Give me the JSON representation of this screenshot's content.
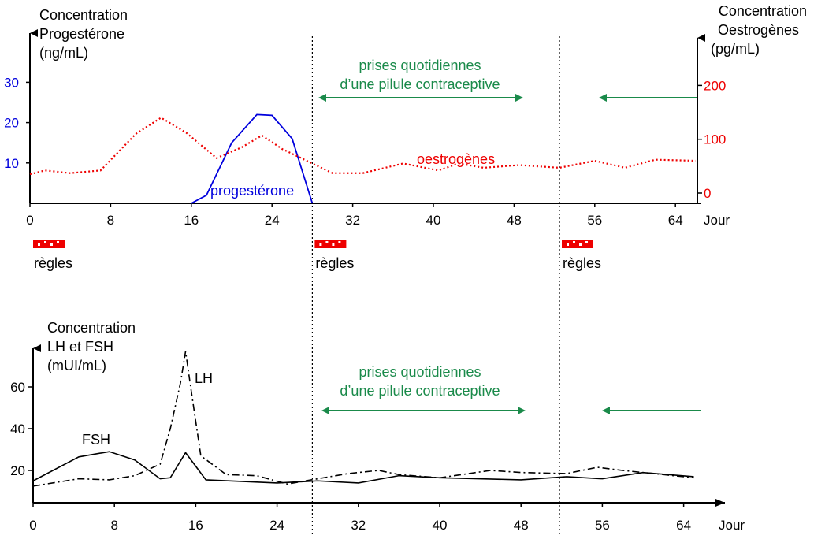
{
  "colors": {
    "progesterone": "#0000dd",
    "oestrogens": "#ee0000",
    "pill": "#1a8a4a",
    "hormones": "#000000"
  },
  "chart_data": [
    {
      "type": "line",
      "x_unit": "Jour",
      "x_ticks": [
        0,
        8,
        16,
        24,
        32,
        40,
        48,
        56,
        64
      ],
      "x_range": [
        0,
        66
      ],
      "y_left": {
        "label_lines": [
          "Concentration",
          "Progestérone",
          "(ng/mL)"
        ],
        "ticks": [
          10,
          20,
          30
        ],
        "range": [
          0,
          35
        ]
      },
      "y_right": {
        "label_lines": [
          "Concentration",
          "Oestrogènes",
          "(pg/mL)"
        ],
        "ticks": [
          0,
          100,
          200
        ],
        "range": [
          0,
          280
        ]
      },
      "series": [
        {
          "name": "progestérone",
          "axis": "left",
          "style": "solid",
          "x": [
            16,
            17.5,
            20,
            22.5,
            24,
            26,
            28
          ],
          "y": [
            0,
            2,
            15,
            22,
            21.8,
            16,
            0
          ]
        },
        {
          "name": "oestrogènes",
          "axis": "right",
          "style": "dotted",
          "x": [
            0,
            1.5,
            4,
            7,
            10.5,
            13,
            15.5,
            18.5,
            21,
            23,
            25,
            28,
            30,
            33,
            37,
            40.5,
            42.5,
            45,
            48.5,
            52.5,
            56,
            59,
            62,
            66
          ],
          "y": [
            35,
            42,
            37,
            42,
            110,
            140,
            112,
            65,
            85,
            107,
            82,
            55,
            37,
            37,
            55,
            42,
            55,
            47,
            52,
            47,
            60,
            47,
            62,
            60
          ]
        }
      ],
      "regles": {
        "label": "règles",
        "days": [
          0,
          28,
          52.5
        ]
      },
      "annotation": {
        "line1": "prises quotidiennes",
        "line2": "d’une pilule contraceptive"
      }
    },
    {
      "type": "line",
      "x_unit": "Jour",
      "x_ticks": [
        0,
        8,
        16,
        24,
        32,
        40,
        48,
        56,
        64
      ],
      "x_range": [
        0,
        66
      ],
      "y": {
        "label_lines": [
          "Concentration",
          "LH et FSH",
          "(mUI/mL)"
        ],
        "ticks": [
          20,
          40,
          60
        ],
        "range": [
          0,
          75
        ]
      },
      "series": [
        {
          "name": "FSH",
          "style": "solid",
          "x": [
            0,
            4.5,
            7.5,
            10,
            12.5,
            13.5,
            15,
            17,
            24,
            28,
            32,
            36,
            40,
            48,
            52.5,
            56,
            60,
            65
          ],
          "y": [
            15,
            26.5,
            29,
            25,
            16,
            16.5,
            28.5,
            15.5,
            14,
            15,
            14,
            17.5,
            16.5,
            15.5,
            17,
            16,
            19,
            17
          ]
        },
        {
          "name": "LH",
          "style": "dashdot",
          "x": [
            0,
            4.5,
            7.5,
            10,
            12.5,
            13.5,
            14.5,
            15,
            15.5,
            16.5,
            19,
            22,
            25,
            28,
            31,
            34,
            36,
            40,
            45,
            48,
            52.5,
            55.5,
            58,
            61,
            65
          ],
          "y": [
            12.5,
            16,
            15.5,
            17.5,
            23,
            40,
            62,
            77,
            60,
            27,
            18,
            17.5,
            13.5,
            16,
            18.5,
            20,
            18,
            16.5,
            20,
            19,
            18.5,
            21.5,
            20,
            18.5,
            16.5
          ]
        }
      ],
      "series_labels": {
        "FSH": "FSH",
        "LH": "LH"
      },
      "annotation": {
        "line1": "prises quotidiennes",
        "line2": "d’une pilule contraceptive"
      }
    }
  ]
}
